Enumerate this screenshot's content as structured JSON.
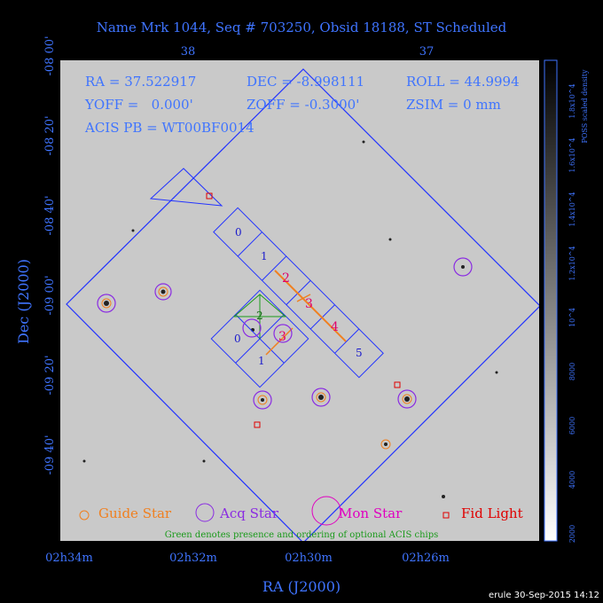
{
  "header": {
    "title": "Name Mrk 1044, Seq # 703250, Obsid 18188, ST Scheduled"
  },
  "info": {
    "ra": "RA = 37.522917",
    "dec": "DEC = -8.998111",
    "roll": "ROLL = 44.9994",
    "yoff": "YOFF =   0.000'",
    "zoff": "ZOFF = -0.3000'",
    "zsim": "ZSIM = 0 mm",
    "acis": "ACIS PB = WT00BF0014"
  },
  "axes": {
    "x_label": "RA (J2000)",
    "y_label": "Dec (J2000)",
    "x_ticks": [
      "02h34m",
      "02h32m",
      "02h30m",
      "02h26m"
    ],
    "top_ticks": [
      "38",
      "37"
    ],
    "y_ticks": [
      "-08 00'",
      "-08 20'",
      "-08 40'",
      "-09 00'",
      "-09 20'",
      "-09 40'"
    ]
  },
  "colorbar": {
    "label": "POSS scaled density",
    "ticks": [
      "2000",
      "4000",
      "6000",
      "8000",
      "10^4",
      "1.2x10^4",
      "1.4x10^4",
      "1.6x10^4",
      "1.8x10^4"
    ]
  },
  "chips": {
    "s": [
      "0",
      "1",
      "2",
      "3",
      "4",
      "5"
    ],
    "i": [
      "0",
      "1",
      "2",
      "3"
    ]
  },
  "legend": {
    "guide": "Guide Star",
    "acq": "Acq Star",
    "mon": "Mon Star",
    "fid": "Fid Light"
  },
  "note": "Green denotes presence and ordering of optional ACIS chips",
  "footer": "erule 30-Sep-2015 14:12"
}
